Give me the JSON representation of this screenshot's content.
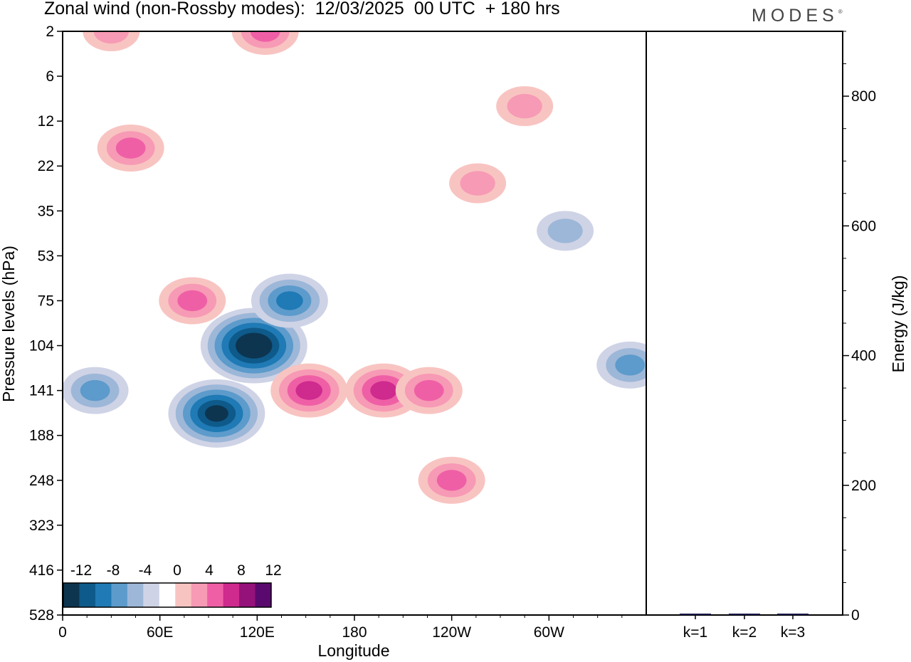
{
  "header": {
    "title": "Zonal wind (non-Rossby modes):  12/03/2025  00 UTC  + 180 hrs",
    "logo": "MODES",
    "logo_mark": "®"
  },
  "chart_data": [
    {
      "type": "heatmap",
      "title": "Zonal wind (non-Rossby modes):  12/03/2025  00 UTC  + 180 hrs",
      "xlabel": "Longitude",
      "ylabel": "Pressure levels (hPa)",
      "x_tick_labels": [
        "0",
        "60E",
        "120E",
        "180",
        "120W",
        "60W"
      ],
      "x_ticks_deg_east": [
        0,
        60,
        120,
        180,
        240,
        300
      ],
      "xlim": [
        0,
        360
      ],
      "y_tick_labels": [
        "2",
        "6",
        "12",
        "22",
        "35",
        "53",
        "75",
        "104",
        "141",
        "188",
        "248",
        "323",
        "416",
        "528"
      ],
      "y_axis_inverted": true,
      "colorbar": {
        "tick_labels": [
          "-12",
          "-8",
          "-4",
          "0",
          "4",
          "8",
          "12"
        ],
        "levels": [
          -14,
          -12,
          -10,
          -8,
          -6,
          -4,
          -2,
          2,
          4,
          6,
          8,
          10,
          12,
          14
        ],
        "colors": [
          "#0d3550",
          "#0e5a8a",
          "#1f7ab5",
          "#5c9bcb",
          "#9db7d8",
          "#cfd3e6",
          "#ffffff",
          "#f8c4c1",
          "#f79ab5",
          "#ef5fa6",
          "#cf2a8e",
          "#94127a",
          "#5a0a6e"
        ],
        "placement": "lower-left inset"
      },
      "blobs": [
        {
          "lon": 118,
          "p": 104,
          "value": -14
        },
        {
          "lon": 95,
          "p": 165,
          "value": -12
        },
        {
          "lon": 140,
          "p": 75,
          "value": -8
        },
        {
          "lon": 20,
          "p": 141,
          "value": -6
        },
        {
          "lon": 310,
          "p": 43,
          "value": -5
        },
        {
          "lon": 350,
          "p": 120,
          "value": -6
        },
        {
          "lon": 152,
          "p": 141,
          "value": 9
        },
        {
          "lon": 198,
          "p": 141,
          "value": 9
        },
        {
          "lon": 226,
          "p": 141,
          "value": 7
        },
        {
          "lon": 240,
          "p": 248,
          "value": 6
        },
        {
          "lon": 80,
          "p": 75,
          "value": 6
        },
        {
          "lon": 42,
          "p": 18,
          "value": 6
        },
        {
          "lon": 256,
          "p": 27,
          "value": 5
        },
        {
          "lon": 285,
          "p": 10,
          "value": 5
        },
        {
          "lon": 125,
          "p": 2,
          "value": 6
        },
        {
          "lon": 30,
          "p": 2,
          "value": 5
        }
      ]
    },
    {
      "type": "bar",
      "categories": [
        "k=1",
        "k=2",
        "k=3"
      ],
      "values": [
        1.2,
        0.8,
        0.9
      ],
      "ylabel": "Energy (J/kg)",
      "ylim": [
        0,
        900
      ],
      "y_tick_labels": [
        "0",
        "200",
        "400",
        "600",
        "800"
      ],
      "y_ticks": [
        0,
        200,
        400,
        600,
        800
      ],
      "y_axis_side": "right"
    }
  ]
}
